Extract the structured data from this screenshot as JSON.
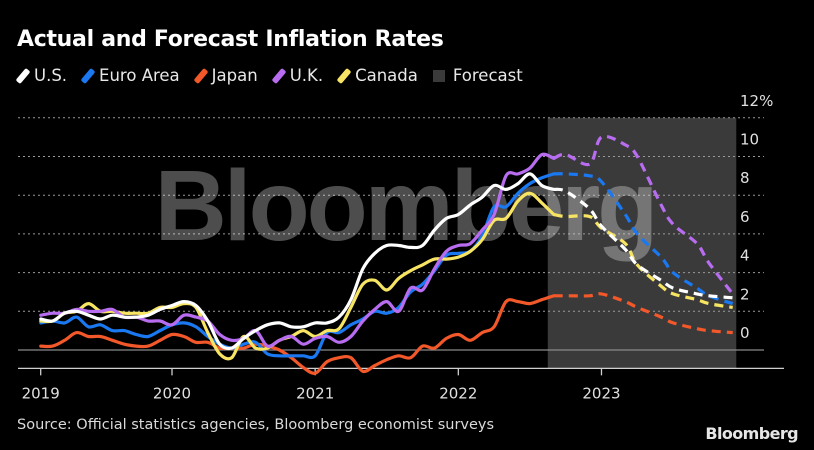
{
  "title": "Actual and Forecast Inflation Rates",
  "legend": [
    {
      "label": "U.S.",
      "color": "#ffffff",
      "kind": "line"
    },
    {
      "label": "Euro Area",
      "color": "#1a78f0",
      "kind": "line"
    },
    {
      "label": "Japan",
      "color": "#f2582a",
      "kind": "line"
    },
    {
      "label": "U.K.",
      "color": "#b86cf0",
      "kind": "line"
    },
    {
      "label": "Canada",
      "color": "#f7e463",
      "kind": "line"
    },
    {
      "label": "Forecast",
      "color": "#3a3a3a",
      "kind": "box"
    }
  ],
  "source": "Source: Official statistics agencies, Bloomberg economist surveys",
  "logo": "Bloomberg",
  "watermark": "Bloomberg",
  "chart_data": {
    "type": "line",
    "title": "Actual and Forecast Inflation Rates",
    "xlabel": "",
    "ylabel": "",
    "y_unit": "%",
    "ylim": [
      -1,
      12
    ],
    "yticks": [
      0,
      2,
      4,
      6,
      8,
      10,
      12
    ],
    "ytick_labels": [
      "0",
      "2",
      "4",
      "6",
      "8",
      "10",
      "12%"
    ],
    "xtick_labels": [
      "2019",
      "2020",
      "2021",
      "2022",
      "2023"
    ],
    "x_unit": "months since Jan 2019",
    "xticks": [
      1,
      12,
      24,
      36,
      48
    ],
    "xlim": [
      -1.5,
      62.5
    ],
    "grid": true,
    "legend_position": "top-left",
    "forecast_region": {
      "start": 43.5,
      "end": 59.3,
      "color": "#3a3a3a"
    },
    "forecast_start_index": 44,
    "x": [
      1,
      2,
      3,
      4,
      5,
      6,
      7,
      8,
      9,
      10,
      11,
      12,
      13,
      14,
      15,
      16,
      17,
      18,
      19,
      20,
      21,
      22,
      23,
      24,
      25,
      26,
      27,
      28,
      29,
      30,
      31,
      32,
      33,
      34,
      35,
      36,
      37,
      38,
      39,
      40,
      41,
      42,
      43,
      44,
      45,
      47,
      48,
      50,
      51,
      53,
      54,
      56,
      57,
      59
    ],
    "series": [
      {
        "name": "U.S.",
        "color": "#ffffff",
        "values": [
          1.6,
          1.5,
          1.9,
          2.0,
          1.8,
          1.6,
          1.8,
          1.7,
          1.7,
          1.8,
          2.1,
          2.3,
          2.5,
          2.3,
          1.5,
          0.3,
          0.1,
          0.6,
          1.0,
          1.3,
          1.4,
          1.2,
          1.2,
          1.4,
          1.4,
          1.7,
          2.6,
          4.2,
          5.0,
          5.4,
          5.4,
          5.3,
          5.4,
          6.2,
          6.8,
          7.0,
          7.5,
          7.9,
          8.5,
          8.3,
          8.6,
          9.1,
          8.5,
          8.3,
          8.2,
          7.3,
          6.4,
          5.2,
          4.4,
          3.6,
          3.2,
          2.9,
          2.8,
          2.7
        ]
      },
      {
        "name": "Euro Area",
        "color": "#1a78f0",
        "values": [
          1.4,
          1.5,
          1.4,
          1.7,
          1.2,
          1.3,
          1.0,
          1.0,
          0.8,
          0.7,
          1.0,
          1.3,
          1.4,
          1.2,
          0.7,
          0.3,
          0.1,
          0.3,
          0.4,
          -0.2,
          -0.3,
          -0.3,
          -0.3,
          -0.3,
          0.9,
          0.9,
          1.3,
          1.6,
          2.0,
          1.9,
          2.2,
          3.0,
          3.4,
          4.1,
          4.9,
          5.0,
          5.1,
          5.9,
          7.4,
          7.4,
          8.1,
          8.6,
          8.9,
          9.1,
          9.1,
          9.0,
          8.7,
          7.0,
          6.0,
          4.8,
          4.0,
          3.2,
          2.8,
          2.4
        ]
      },
      {
        "name": "Japan",
        "color": "#f2582a",
        "values": [
          0.2,
          0.2,
          0.5,
          0.9,
          0.7,
          0.7,
          0.5,
          0.3,
          0.2,
          0.2,
          0.5,
          0.8,
          0.7,
          0.4,
          0.4,
          0.1,
          0.1,
          0.1,
          0.3,
          0.2,
          0.0,
          -0.4,
          -0.9,
          -1.2,
          -0.6,
          -0.4,
          -0.4,
          -1.1,
          -0.8,
          -0.5,
          -0.3,
          -0.4,
          0.2,
          0.1,
          0.6,
          0.8,
          0.5,
          0.9,
          1.2,
          2.5,
          2.5,
          2.4,
          2.6,
          2.8,
          2.8,
          2.8,
          2.9,
          2.5,
          2.2,
          1.7,
          1.4,
          1.1,
          1.0,
          0.9
        ]
      },
      {
        "name": "U.K.",
        "color": "#b86cf0",
        "values": [
          1.8,
          1.9,
          1.9,
          2.1,
          2.0,
          2.0,
          2.1,
          1.7,
          1.7,
          1.5,
          1.5,
          1.3,
          1.8,
          1.7,
          1.5,
          0.8,
          0.5,
          0.6,
          1.0,
          0.2,
          0.5,
          0.7,
          0.3,
          0.6,
          0.7,
          0.4,
          0.7,
          1.5,
          2.1,
          2.5,
          2.0,
          3.2,
          3.1,
          4.2,
          5.1,
          5.4,
          5.5,
          6.2,
          7.0,
          9.0,
          9.1,
          9.4,
          10.1,
          9.9,
          10.1,
          9.6,
          11.0,
          10.6,
          10.0,
          7.5,
          6.5,
          5.5,
          4.5,
          2.9
        ]
      },
      {
        "name": "Canada",
        "color": "#f7e463",
        "values": [
          1.5,
          1.5,
          1.9,
          2.0,
          2.4,
          2.0,
          2.0,
          1.9,
          1.9,
          1.9,
          2.2,
          2.2,
          2.4,
          2.2,
          0.9,
          -0.2,
          -0.4,
          0.7,
          0.1,
          0.1,
          0.5,
          0.7,
          1.0,
          0.7,
          1.0,
          1.1,
          2.2,
          3.4,
          3.6,
          3.1,
          3.7,
          4.1,
          4.4,
          4.7,
          4.7,
          4.8,
          5.1,
          5.7,
          6.7,
          6.8,
          7.7,
          8.1,
          7.6,
          7.0,
          6.9,
          6.9,
          6.3,
          5.5,
          4.4,
          3.3,
          2.9,
          2.6,
          2.4,
          2.2
        ]
      }
    ]
  }
}
